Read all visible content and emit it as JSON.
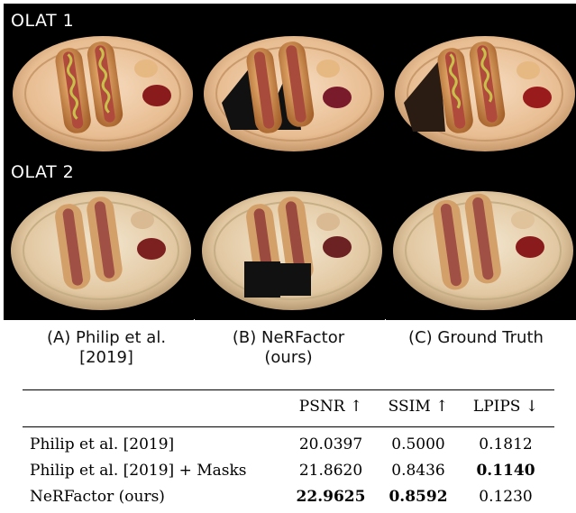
{
  "rows": [
    {
      "label": "OLAT 1"
    },
    {
      "label": "OLAT 2"
    }
  ],
  "captions": [
    {
      "line1": "(A) Philip et al.",
      "line2": "[2019]"
    },
    {
      "line1": "(B) NeRFactor",
      "line2": "(ours)"
    },
    {
      "line1": "(C) Ground Truth",
      "line2": ""
    }
  ],
  "table": {
    "headers": [
      "PSNR ↑",
      "SSIM ↑",
      "LPIPS ↓"
    ],
    "rows": [
      {
        "method": "Philip et al. [2019]",
        "psnr": "20.0397",
        "ssim": "0.5000",
        "lpips": "0.1812"
      },
      {
        "method": "Philip et al. [2019] + Masks",
        "psnr": "21.8620",
        "ssim": "0.8436",
        "lpips": "0.1140"
      },
      {
        "method": "NeRFactor (ours)",
        "psnr": "22.9625",
        "ssim": "0.8592",
        "lpips": "0.1230"
      }
    ]
  }
}
